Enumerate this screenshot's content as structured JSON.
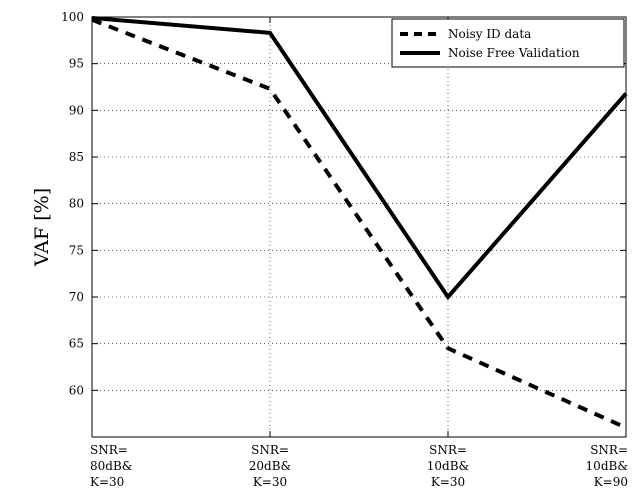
{
  "chart_data": {
    "type": "line",
    "title": "",
    "xlabel": "",
    "ylabel": "VAF [%]",
    "categories": [
      [
        "SNR=",
        "80dB&",
        "K=30"
      ],
      [
        "SNR=",
        "20dB&",
        "K=30"
      ],
      [
        "SNR=",
        "10dB&",
        "K=30"
      ],
      [
        "SNR=",
        "10dB&",
        "K=90"
      ]
    ],
    "ylim": [
      55,
      100
    ],
    "yticks": [
      60,
      65,
      70,
      75,
      80,
      85,
      90,
      95,
      100
    ],
    "grid": true,
    "legend_position": "top-right",
    "series": [
      {
        "name": "Noisy ID data",
        "style": "dashed",
        "color": "#000000",
        "values": [
          99.7,
          92.3,
          64.5,
          56.0
        ]
      },
      {
        "name": "Noise Free Validation",
        "style": "solid",
        "color": "#000000",
        "values": [
          99.9,
          98.3,
          70.0,
          91.8
        ]
      }
    ]
  }
}
